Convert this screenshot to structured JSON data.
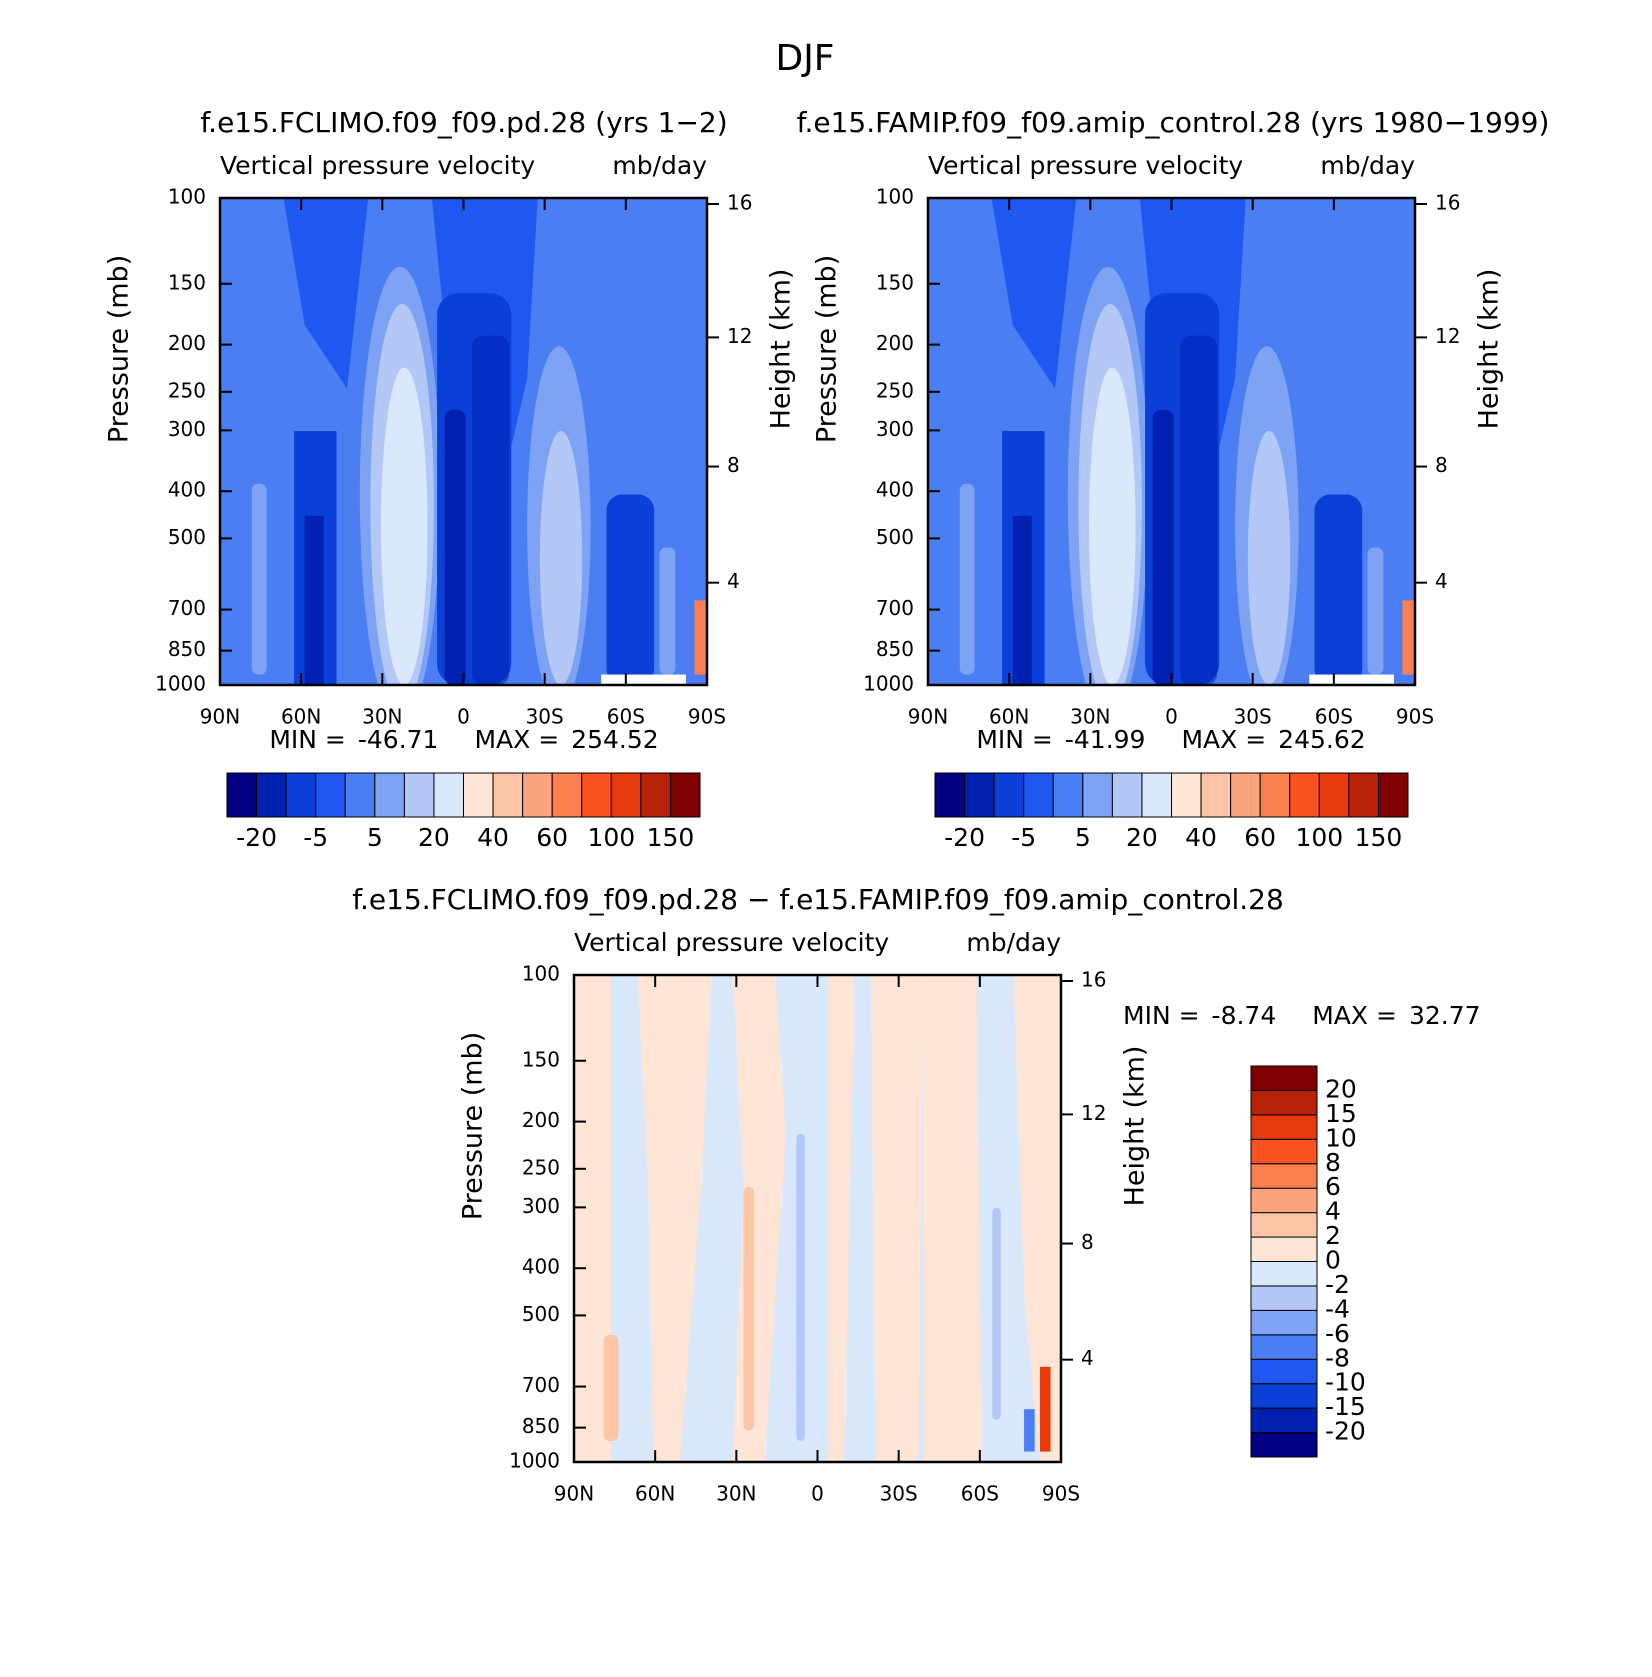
{
  "title": "DJF",
  "chart_data": [
    {
      "type": "contour",
      "title": "f.e15.FCLIMO.f09_f09.pd.28 (yrs 1−2)",
      "left_string": "Vertical pressure velocity",
      "right_string": "mb/day",
      "ylabel": "Pressure (mb)",
      "y2label": "Height (km)",
      "xlim": [
        90,
        -90
      ],
      "xticks": [
        {
          "value": 90,
          "label": "90N"
        },
        {
          "value": 60,
          "label": "60N"
        },
        {
          "value": 30,
          "label": "30N"
        },
        0,
        {
          "value": -30,
          "label": "30S"
        },
        {
          "value": -60,
          "label": "60S"
        },
        {
          "value": -90,
          "label": "90S"
        }
      ],
      "ylim": [
        1000,
        100
      ],
      "yscale": "log",
      "yticks": [
        100,
        150,
        200,
        250,
        300,
        400,
        500,
        700,
        850,
        1000
      ],
      "y2scale": "standard-atmosphere",
      "y2ticks": [
        16,
        12,
        8,
        4
      ],
      "min_label": "MIN =",
      "min": -46.71,
      "max_label": "MAX =",
      "max": 254.52,
      "colorbar": {
        "orientation": "horizontal",
        "levels": [
          -20,
          -5,
          5,
          20,
          40,
          60,
          100,
          150
        ],
        "colors": [
          "#000080",
          "#0020b0",
          "#0a3fd8",
          "#1e58f0",
          "#4a7ef2",
          "#7ea3f4",
          "#b3c8f7",
          "#d9e8fb",
          "#fde6d6",
          "#fcc5a8",
          "#fba47e",
          "#fb7f4f",
          "#f7521f",
          "#e63a0c",
          "#b82207",
          "#7f0000"
        ]
      }
    },
    {
      "type": "contour",
      "title": "f.e15.FAMIP.f09_f09.amip_control.28 (yrs 1980−1999)",
      "left_string": "Vertical pressure velocity",
      "right_string": "mb/day",
      "ylabel": "Pressure (mb)",
      "y2label": "Height (km)",
      "xlim": [
        90,
        -90
      ],
      "xticks": [
        {
          "value": 90,
          "label": "90N"
        },
        {
          "value": 60,
          "label": "60N"
        },
        {
          "value": 30,
          "label": "30N"
        },
        0,
        {
          "value": -30,
          "label": "30S"
        },
        {
          "value": -60,
          "label": "60S"
        },
        {
          "value": -90,
          "label": "90S"
        }
      ],
      "ylim": [
        1000,
        100
      ],
      "yscale": "log",
      "yticks": [
        100,
        150,
        200,
        250,
        300,
        400,
        500,
        700,
        850,
        1000
      ],
      "y2scale": "standard-atmosphere",
      "y2ticks": [
        16,
        12,
        8,
        4
      ],
      "min_label": "MIN =",
      "min": -41.99,
      "max_label": "MAX =",
      "max": 245.62,
      "colorbar": {
        "orientation": "horizontal",
        "levels": [
          -20,
          -5,
          5,
          20,
          40,
          60,
          100,
          150
        ],
        "colors": [
          "#000080",
          "#0020b0",
          "#0a3fd8",
          "#1e58f0",
          "#4a7ef2",
          "#7ea3f4",
          "#b3c8f7",
          "#d9e8fb",
          "#fde6d6",
          "#fcc5a8",
          "#fba47e",
          "#fb7f4f",
          "#f7521f",
          "#e63a0c",
          "#b82207",
          "#7f0000"
        ]
      }
    },
    {
      "type": "contour",
      "title": "f.e15.FCLIMO.f09_f09.pd.28 − f.e15.FAMIP.f09_f09.amip_control.28",
      "left_string": "Vertical pressure velocity",
      "right_string": "mb/day",
      "ylabel": "Pressure (mb)",
      "y2label": "Height (km)",
      "xlim": [
        90,
        -90
      ],
      "xticks": [
        {
          "value": 90,
          "label": "90N"
        },
        {
          "value": 60,
          "label": "60N"
        },
        {
          "value": 30,
          "label": "30N"
        },
        0,
        {
          "value": -30,
          "label": "30S"
        },
        {
          "value": -60,
          "label": "60S"
        },
        {
          "value": -90,
          "label": "90S"
        }
      ],
      "ylim": [
        1000,
        100
      ],
      "yscale": "log",
      "yticks": [
        100,
        150,
        200,
        250,
        300,
        400,
        500,
        700,
        850,
        1000
      ],
      "y2scale": "standard-atmosphere",
      "y2ticks": [
        16,
        12,
        8,
        4
      ],
      "min_label": "MIN =",
      "min": -8.74,
      "max_label": "MAX =",
      "max": 32.77,
      "colorbar": {
        "orientation": "vertical",
        "levels": [
          -20,
          -15,
          -10,
          -8,
          -6,
          -4,
          -2,
          0,
          2,
          4,
          6,
          8,
          10,
          15,
          20
        ],
        "colors": [
          "#000080",
          "#0020b0",
          "#0a3fd8",
          "#1e58f0",
          "#4a7ef2",
          "#7ea3f4",
          "#b3c8f7",
          "#d9e8fb",
          "#fde6d6",
          "#fcc5a8",
          "#fba47e",
          "#fb7f4f",
          "#f7521f",
          "#e63a0c",
          "#b82207",
          "#7f0000"
        ]
      }
    }
  ]
}
